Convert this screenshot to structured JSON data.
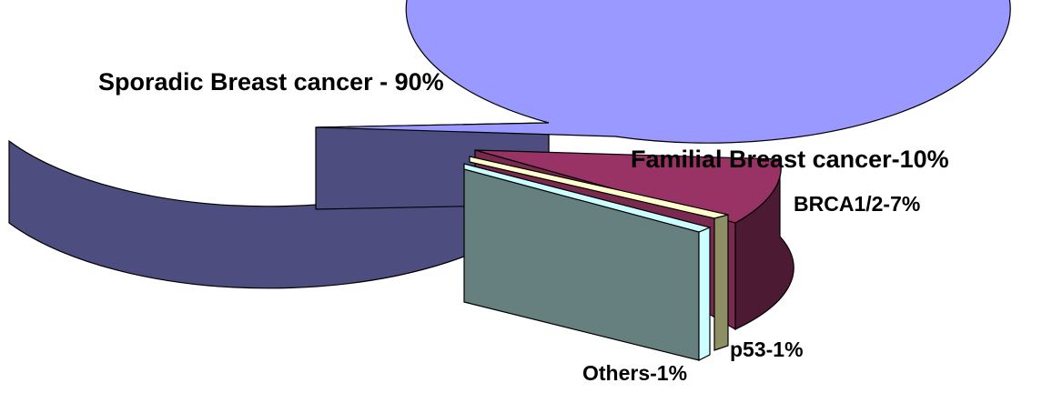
{
  "chart_data": {
    "type": "pie",
    "style": "3d-exploded",
    "slices": [
      {
        "label": "Sporadic Breast cancer - 90%",
        "value": 90,
        "color": "#9999FF",
        "side_color": "#4D4D80"
      },
      {
        "label": "BRCA1/2-7%",
        "value": 7,
        "color": "#993366",
        "side_color": "#4D1A33"
      },
      {
        "label": "p53-1%",
        "value": 1,
        "color": "#FFFFCC",
        "side_color": "#8F8F66"
      },
      {
        "label": "Others-1%",
        "value": 1,
        "color": "#CCFFFF",
        "side_color": "#668080"
      }
    ],
    "group_label": "Familial Breast cancer-10%",
    "legend": "none"
  }
}
